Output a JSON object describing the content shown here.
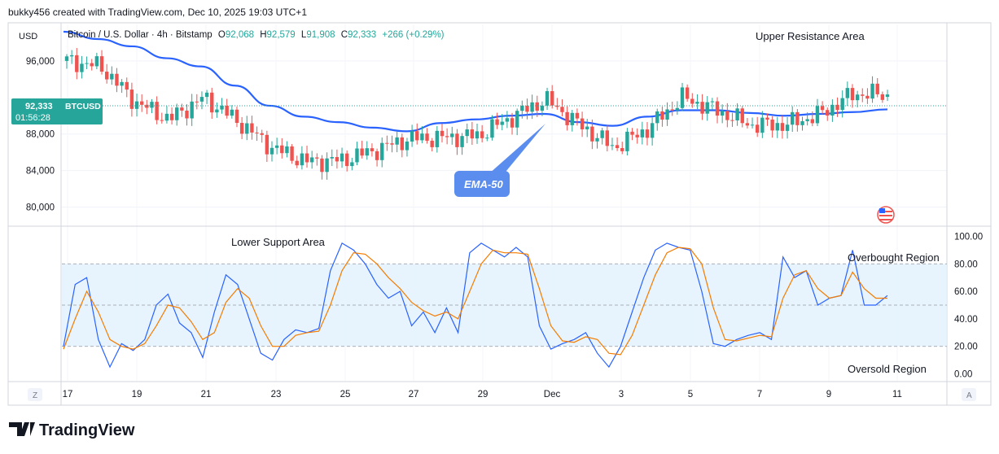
{
  "header": {
    "credit": "bukky456 created with TradingView.com, Dec 10, 2025 19:03 UTC+1"
  },
  "currency_label": "USD",
  "legend": {
    "symbol": "Bitcoin / U.S. Dollar · 4h · Bitstamp",
    "o_label": "O",
    "o_value": "92,068",
    "h_label": "H",
    "h_value": "92,579",
    "l_label": "L",
    "l_value": "91,908",
    "c_label": "C",
    "c_value": "92,333",
    "change": "+266 (+0.29%)"
  },
  "price_tag": {
    "price": "92,333",
    "ticker": "BTCUSD",
    "countdown": "01:56:28"
  },
  "annotations": {
    "upper_resistance": "Upper Resistance Area",
    "lower_support": "Lower Support Area",
    "ema_callout": "EMA-50",
    "overbought": "Overbought Region",
    "oversold": "Oversold Region"
  },
  "bottom_buttons": {
    "left": "Z",
    "right": "A"
  },
  "brand": {
    "name": "TradingView"
  },
  "colors": {
    "up": "#26a69a",
    "down": "#ef5350",
    "ema": "#2962ff",
    "stoch_k": "#2962ff",
    "stoch_d": "#f57c00",
    "band_fill": "#e3f2fd",
    "callout": "#5b8def",
    "price_tag": "#26a69a"
  },
  "chart_data": [
    {
      "type": "candlestick",
      "title": "Bitcoin / U.S. Dollar · 4h · Bitstamp",
      "x_tick_labels": [
        "17",
        "19",
        "21",
        "23",
        "25",
        "27",
        "29",
        "Dec",
        "3",
        "5",
        "7",
        "9",
        "11"
      ],
      "y_tick_labels": [
        "96,000",
        "88,000",
        "84,000",
        "80,000"
      ],
      "ylim": [
        78000,
        100000
      ],
      "grid": true,
      "ema50": {
        "label": "EMA-50",
        "x": [
          "Nov 16",
          "Nov 17",
          "Nov 18",
          "Nov 19",
          "Nov 20",
          "Nov 21",
          "Nov 22",
          "Nov 23",
          "Nov 24",
          "Nov 25",
          "Nov 26",
          "Nov 27",
          "Nov 28",
          "Nov 29",
          "Nov 30",
          "Dec 1",
          "Dec 2",
          "Dec 3",
          "Dec 4",
          "Dec 5",
          "Dec 6",
          "Dec 7",
          "Dec 8",
          "Dec 9",
          "Dec 10"
        ],
        "values": [
          99200,
          98400,
          97600,
          96300,
          95400,
          93300,
          91100,
          89900,
          89300,
          88700,
          88300,
          89200,
          89600,
          90000,
          90200,
          89300,
          88900,
          89900,
          90600,
          90600,
          90300,
          90000,
          90200,
          90400,
          90700
        ]
      },
      "approx_closes": [
        96000,
        95400,
        91500,
        89600,
        92000,
        89400,
        86500,
        85000,
        85100,
        86200,
        87500,
        87600,
        87800,
        89800,
        91800,
        89000,
        86500,
        88600,
        92000,
        90600,
        89000,
        89000,
        90100,
        92400,
        92333
      ],
      "last": {
        "open": 92068,
        "high": 92579,
        "low": 91908,
        "close": 92333,
        "change": 266,
        "change_pct": 0.29
      }
    },
    {
      "type": "line",
      "title": "Stochastic",
      "y_tick_labels": [
        "100.00",
        "80.00",
        "60.00",
        "40.00",
        "20.00",
        "0.00"
      ],
      "ylim": [
        -5,
        105
      ],
      "bands": {
        "upper": 80,
        "middle": 50,
        "lower": 20
      },
      "series": [
        {
          "values": [
            20,
            65,
            70,
            25,
            5,
            22,
            17,
            25,
            50,
            58,
            37,
            30,
            12,
            45,
            72,
            65,
            40,
            15,
            10,
            25,
            32,
            30,
            33,
            75,
            95,
            90,
            80,
            65,
            55,
            60,
            35,
            45,
            30,
            48,
            30,
            88,
            95,
            90,
            85,
            92,
            85,
            35,
            18,
            22,
            25,
            30,
            15,
            5,
            20,
            45,
            70,
            90,
            95,
            92,
            90,
            60,
            22,
            20,
            25,
            28,
            30,
            25,
            85,
            70,
            75,
            50,
            55,
            57,
            90,
            50,
            50,
            57
          ]
        },
        {
          "values": [
            18,
            40,
            60,
            45,
            25,
            20,
            18,
            22,
            35,
            50,
            48,
            38,
            25,
            30,
            52,
            62,
            55,
            35,
            20,
            20,
            28,
            30,
            31,
            50,
            75,
            88,
            87,
            80,
            70,
            62,
            52,
            46,
            42,
            45,
            40,
            60,
            80,
            90,
            88,
            88,
            87,
            62,
            35,
            24,
            23,
            27,
            25,
            15,
            14,
            28,
            50,
            72,
            88,
            92,
            91,
            80,
            48,
            25,
            24,
            26,
            28,
            27,
            55,
            72,
            75,
            62,
            55,
            57,
            74,
            62,
            55,
            55
          ]
        }
      ]
    }
  ]
}
